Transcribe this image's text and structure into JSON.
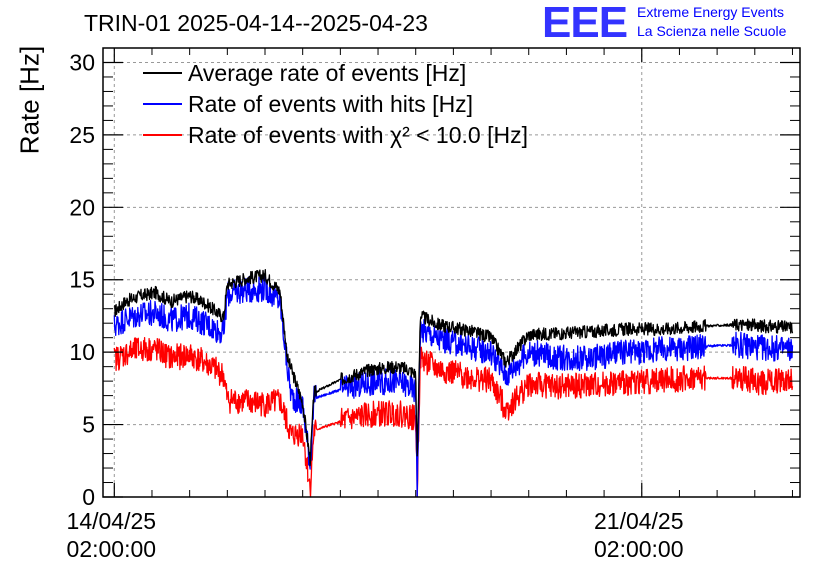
{
  "chart_data": {
    "type": "line",
    "title": "TRIN-01 2025-04-14--2025-04-23",
    "ylabel": "Rate [Hz]",
    "xlabel": "",
    "ylim": [
      0,
      31
    ],
    "yticks": [
      0,
      5,
      10,
      15,
      20,
      25,
      30
    ],
    "x_unit": "days since 2025-04-14 02:00:00",
    "xlim": [
      -0.15,
      9.1
    ],
    "xticks": [
      {
        "x": 0,
        "label": [
          "14/04/25",
          "02:00:00"
        ]
      },
      {
        "x": 7,
        "label": [
          "21/04/25",
          "02:00:00"
        ]
      }
    ],
    "grid": true,
    "legend_position": "top-left",
    "series": [
      {
        "name": "Average rate of events [Hz]",
        "color": "#000000",
        "x": [
          0,
          0.15,
          0.35,
          0.55,
          0.75,
          1.0,
          1.2,
          1.45,
          1.5,
          1.75,
          2.0,
          2.2,
          2.3,
          2.35,
          2.5,
          2.6,
          2.65,
          3.0,
          3.4,
          3.75,
          3.9,
          4.0,
          4.02,
          4.06,
          4.3,
          4.7,
          5.0,
          5.2,
          5.5,
          5.9,
          6.3,
          6.8,
          7.3,
          7.8,
          8.3,
          8.6,
          9.0
        ],
        "values": [
          12.8,
          13.5,
          13.9,
          14.1,
          13.5,
          13.9,
          13.4,
          12.4,
          14.7,
          15.1,
          15.3,
          14.2,
          9.5,
          8.8,
          6.5,
          2.5,
          7.2,
          8.1,
          8.8,
          9.0,
          8.8,
          8.5,
          2.5,
          12.5,
          11.9,
          11.5,
          11.0,
          9.3,
          11.2,
          11.3,
          11.4,
          11.6,
          11.6,
          11.8,
          11.9,
          11.8,
          11.7
        ]
      },
      {
        "name": "Rate of events with hits [Hz]",
        "color": "#0000ff",
        "x": [
          0,
          0.15,
          0.35,
          0.55,
          0.75,
          1.0,
          1.2,
          1.45,
          1.5,
          1.75,
          2.0,
          2.2,
          2.3,
          2.35,
          2.5,
          2.6,
          2.65,
          3.0,
          3.4,
          3.75,
          3.9,
          4.0,
          4.02,
          4.06,
          4.3,
          4.7,
          5.0,
          5.2,
          5.5,
          5.9,
          6.3,
          6.8,
          7.3,
          7.8,
          8.3,
          8.6,
          9.0
        ],
        "values": [
          11.8,
          12.3,
          12.6,
          12.7,
          12.2,
          12.5,
          12.0,
          11.3,
          14.0,
          14.3,
          14.4,
          13.5,
          8.8,
          7.0,
          6.3,
          2.3,
          6.8,
          7.4,
          7.9,
          8.0,
          7.7,
          7.3,
          0.5,
          11.6,
          10.9,
          10.4,
          10.0,
          8.4,
          10.0,
          9.6,
          9.6,
          10.0,
          10.2,
          10.4,
          10.5,
          10.3,
          10.2
        ]
      },
      {
        "name": "Rate of events with χ² < 10.0 [Hz]",
        "color": "#ff0000",
        "x": [
          0,
          0.15,
          0.35,
          0.55,
          0.75,
          1.0,
          1.2,
          1.45,
          1.5,
          1.75,
          2.0,
          2.2,
          2.3,
          2.35,
          2.5,
          2.6,
          2.65,
          3.0,
          3.4,
          3.75,
          3.9,
          4.0,
          4.02,
          4.06,
          4.3,
          4.7,
          5.0,
          5.2,
          5.5,
          5.9,
          6.3,
          6.8,
          7.3,
          7.8,
          8.3,
          8.6,
          9.0
        ],
        "values": [
          9.5,
          9.9,
          10.2,
          10.2,
          9.6,
          9.8,
          9.3,
          8.4,
          6.7,
          6.6,
          6.4,
          6.6,
          5.0,
          4.2,
          4.5,
          0.5,
          4.6,
          5.2,
          5.7,
          5.8,
          5.6,
          5.4,
          0.5,
          9.6,
          8.8,
          8.3,
          8.0,
          6.0,
          7.8,
          7.6,
          7.7,
          7.9,
          8.1,
          8.2,
          8.2,
          7.9,
          8.1
        ]
      }
    ]
  },
  "logo": {
    "mark": "EEE",
    "line1": "Extreme Energy Events",
    "line2": "La Scienza nelle Scuole"
  }
}
